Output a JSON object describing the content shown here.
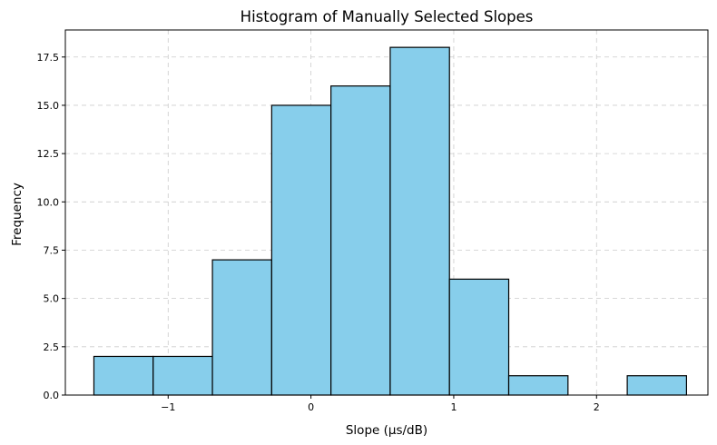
{
  "chart_data": {
    "type": "bar",
    "subtype": "histogram",
    "title": "Histogram of Manually Selected Slopes",
    "xlabel": "Slope (µs/dB)",
    "ylabel": "Frequency",
    "xlim": [
      -1.72,
      2.78
    ],
    "ylim": [
      0,
      18.9
    ],
    "x_ticks": [
      {
        "value": -1,
        "label": "−1"
      },
      {
        "value": 0,
        "label": "0"
      },
      {
        "value": 1,
        "label": "1"
      },
      {
        "value": 2,
        "label": "2"
      }
    ],
    "y_ticks": [
      {
        "value": 0,
        "label": "0.0"
      },
      {
        "value": 2.5,
        "label": "2.5"
      },
      {
        "value": 5,
        "label": "5.0"
      },
      {
        "value": 7.5,
        "label": "7.5"
      },
      {
        "value": 10,
        "label": "10.0"
      },
      {
        "value": 12.5,
        "label": "12.5"
      },
      {
        "value": 15,
        "label": "15.0"
      },
      {
        "value": 17.5,
        "label": "17.5"
      }
    ],
    "bin_edges": [
      -1.52,
      -1.105,
      -0.69,
      -0.275,
      0.14,
      0.555,
      0.97,
      1.385,
      1.8,
      2.215,
      2.63
    ],
    "counts": [
      2,
      2,
      7,
      15,
      16,
      18,
      6,
      1,
      0,
      1
    ],
    "grid": true,
    "grid_style": "dashed",
    "bar_color": "#87CEEB",
    "edge_color": "#000000",
    "grid_color": "#cccccc"
  }
}
